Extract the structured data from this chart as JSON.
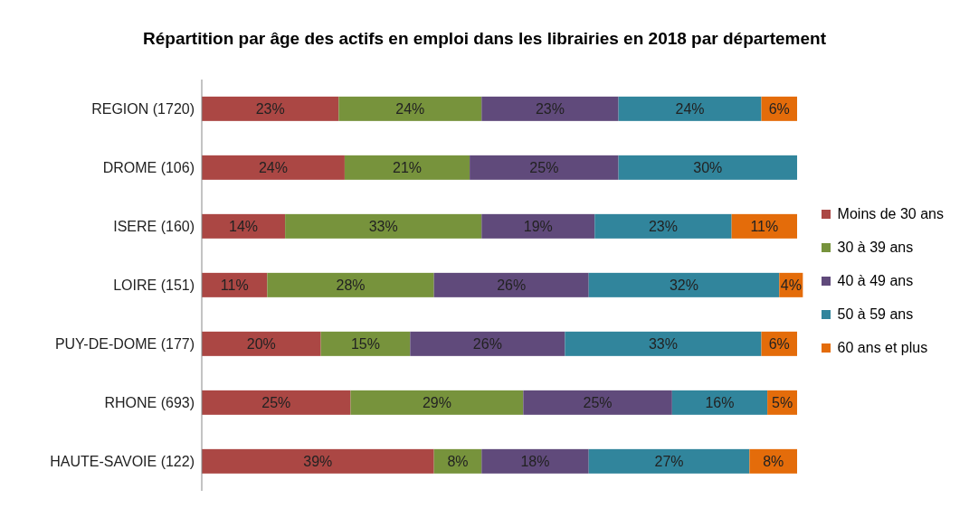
{
  "chart_data": {
    "type": "bar",
    "orientation": "horizontal",
    "stacked": true,
    "title": "Répartition par âge des actifs en emploi dans les librairies en 2018 par département",
    "categories": [
      "REGION (1720)",
      "DROME (106)",
      "ISERE (160)",
      "LOIRE (151)",
      "PUY-DE-DOME (177)",
      "RHONE (693)",
      "HAUTE-SAVOIE (122)"
    ],
    "series": [
      {
        "name": "Moins de 30 ans",
        "color": "#ab4744",
        "values": [
          23,
          24,
          14,
          11,
          20,
          25,
          39
        ],
        "value_labels": [
          "23%",
          "24%",
          "14%",
          "11%",
          "20%",
          "25%",
          "39%"
        ]
      },
      {
        "name": "30 à 39 ans",
        "color": "#77933c",
        "values": [
          24,
          21,
          33,
          28,
          15,
          29,
          8
        ],
        "value_labels": [
          "24%",
          "21%",
          "33%",
          "28%",
          "15%",
          "29%",
          "8%"
        ]
      },
      {
        "name": "40 à 49 ans",
        "color": "#604a7b",
        "values": [
          23,
          25,
          19,
          26,
          26,
          25,
          18
        ],
        "value_labels": [
          "23%",
          "25%",
          "19%",
          "26%",
          "26%",
          "25%",
          "18%"
        ]
      },
      {
        "name": "50 à 59 ans",
        "color": "#31859c",
        "values": [
          24,
          30,
          23,
          32,
          33,
          16,
          27
        ],
        "value_labels": [
          "24%",
          "30%",
          "23%",
          "32%",
          "33%",
          "16%",
          "27%"
        ]
      },
      {
        "name": "60 ans et plus",
        "color": "#e46c0a",
        "values": [
          6,
          null,
          11,
          4,
          6,
          5,
          8
        ],
        "value_labels": [
          "6%",
          null,
          "11%",
          "4%",
          "6%",
          "5%",
          "8%"
        ]
      }
    ],
    "legend": "right",
    "tick_labels": "y"
  }
}
